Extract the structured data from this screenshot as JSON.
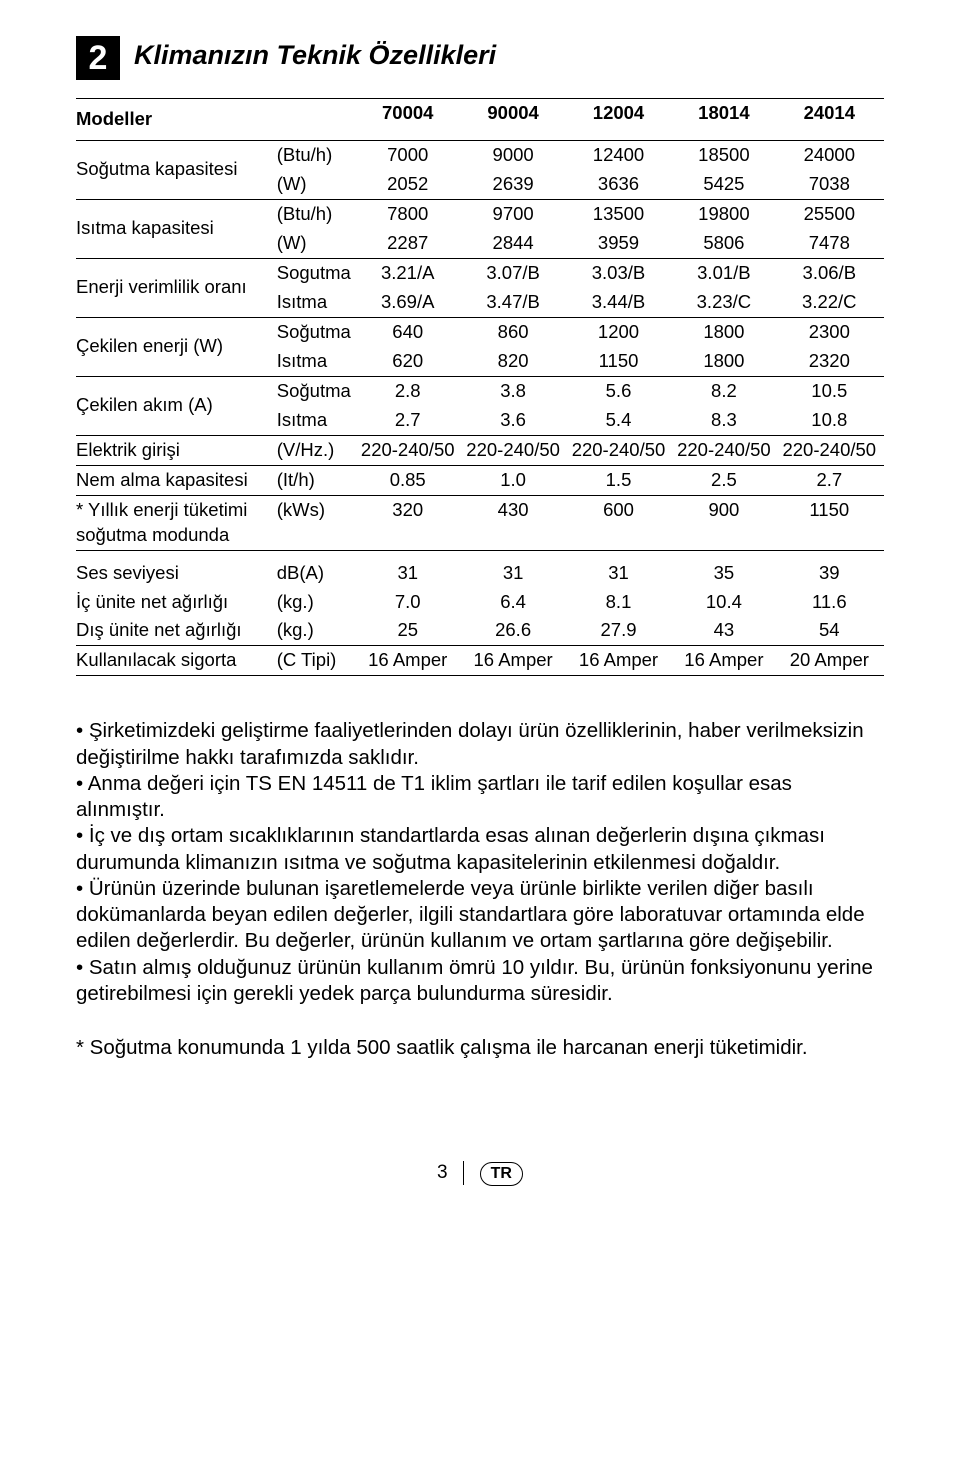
{
  "badge": "2",
  "title": "Klimanızın Teknik Özellikleri",
  "header": {
    "label": "Modeller",
    "models": [
      "70004",
      "90004",
      "12004",
      "18014",
      "24014"
    ]
  },
  "rows": [
    {
      "label": "Soğutma kapasitesi",
      "lines": [
        {
          "unit": "(Btu/h)",
          "vals": [
            "7000",
            "9000",
            "12400",
            "18500",
            "24000"
          ]
        },
        {
          "unit": "(W)",
          "vals": [
            "2052",
            "2639",
            "3636",
            "5425",
            "7038"
          ]
        }
      ],
      "border": "bottom"
    },
    {
      "label": "Isıtma kapasitesi",
      "lines": [
        {
          "unit": "(Btu/h)",
          "vals": [
            "7800",
            "9700",
            "13500",
            "19800",
            "25500"
          ]
        },
        {
          "unit": "(W)",
          "vals": [
            "2287",
            "2844",
            "3959",
            "5806",
            "7478"
          ]
        }
      ],
      "border": "bottom"
    },
    {
      "label": "Enerji verimlilik oranı",
      "lines": [
        {
          "unit": "Sogutma",
          "vals": [
            "3.21/A",
            "3.07/B",
            "3.03/B",
            "3.01/B",
            "3.06/B"
          ]
        },
        {
          "unit": "Isıtma",
          "vals": [
            "3.69/A",
            "3.47/B",
            "3.44/B",
            "3.23/C",
            "3.22/C"
          ]
        }
      ],
      "border": "bottom"
    },
    {
      "label": "Çekilen enerji  (W)",
      "lines": [
        {
          "unit": "Soğutma",
          "vals": [
            "640",
            "860",
            "1200",
            "1800",
            "2300"
          ]
        },
        {
          "unit": "Isıtma",
          "vals": [
            "620",
            "820",
            "1150",
            "1800",
            "2320"
          ]
        }
      ],
      "border": "bottom"
    },
    {
      "label": "Çekilen akım   (A)",
      "lines": [
        {
          "unit": "Soğutma",
          "vals": [
            "2.8",
            "3.8",
            "5.6",
            "8.2",
            "10.5"
          ]
        },
        {
          "unit": "Isıtma",
          "vals": [
            "2.7",
            "3.6",
            "5.4",
            "8.3",
            "10.8"
          ]
        }
      ],
      "border": "bottom"
    },
    {
      "label": "Elektrik girişi",
      "lines": [
        {
          "unit": "(V/Hz.)",
          "vals": [
            "220-240/50",
            "220-240/50",
            "220-240/50",
            "220-240/50",
            "220-240/50"
          ]
        }
      ],
      "border": "bottom"
    },
    {
      "label": "Nem alma kapasitesi",
      "lines": [
        {
          "unit": "(It/h)",
          "vals": [
            "0.85",
            "1.0",
            "1.5",
            "2.5",
            "2.7"
          ]
        }
      ],
      "border": "bottom"
    },
    {
      "label": "* Yıllık enerji tüketimi soğutma modunda",
      "lines": [
        {
          "unit": "(kWs)",
          "vals": [
            "320",
            "430",
            "600",
            "900",
            "1150"
          ]
        }
      ],
      "border": "bottom"
    },
    {
      "label": "Ses seviyesi",
      "lines": [
        {
          "unit": "dB(A)",
          "vals": [
            "31",
            "31",
            "31",
            "35",
            "39"
          ]
        }
      ],
      "border": "none",
      "spacer": true
    },
    {
      "label": "İç ünite net ağırlığı",
      "lines": [
        {
          "unit": "(kg.)",
          "vals": [
            "7.0",
            "6.4",
            "8.1",
            "10.4",
            "11.6"
          ]
        }
      ],
      "border": "none"
    },
    {
      "label": "Dış ünite net ağırlığı",
      "lines": [
        {
          "unit": "(kg.)",
          "vals": [
            "25",
            "26.6",
            "27.9",
            "43",
            "54"
          ]
        }
      ],
      "border": "bottom"
    },
    {
      "label": "Kullanılacak sigorta",
      "lines": [
        {
          "unit": "(C Tipi)",
          "vals": [
            "16 Amper",
            "16 Amper",
            "16 Amper",
            "16 Amper",
            "20 Amper"
          ]
        }
      ],
      "border": "bottom"
    }
  ],
  "notes": [
    "• Şirketimizdeki geliştirme faaliyetlerinden dolayı ürün özelliklerinin, haber verilmeksizin değiştirilme hakkı tarafımızda saklıdır.",
    "• Anma değeri için TS EN 14511 de T1 iklim şartları ile tarif edilen koşullar esas alınmıştır.",
    "• İç ve dış ortam sıcaklıklarının standartlarda esas alınan değerlerin dışına çıkması durumunda klimanızın ısıtma ve soğutma kapasitelerinin etkilenmesi doğaldır.",
    "• Ürünün üzerinde bulunan işaretlemelerde veya ürünle birlikte verilen diğer basılı dokümanlarda beyan edilen değerler, ilgili standartlara göre laboratuvar ortamında elde edilen değerlerdir. Bu değerler, ürünün kullanım ve ortam şartlarına göre değişebilir.",
    "• Satın almış olduğunuz ürünün kullanım ömrü 10 yıldır. Bu, ürünün fonksiyonunu yerine getirebilmesi için gerekli yedek parça bulundurma süresidir."
  ],
  "footnote": "* Soğutma konumunda 1 yılda 500 saatlik çalışma ile harcanan enerji tüketimidir.",
  "footer": {
    "page": "3",
    "lang": "TR"
  }
}
